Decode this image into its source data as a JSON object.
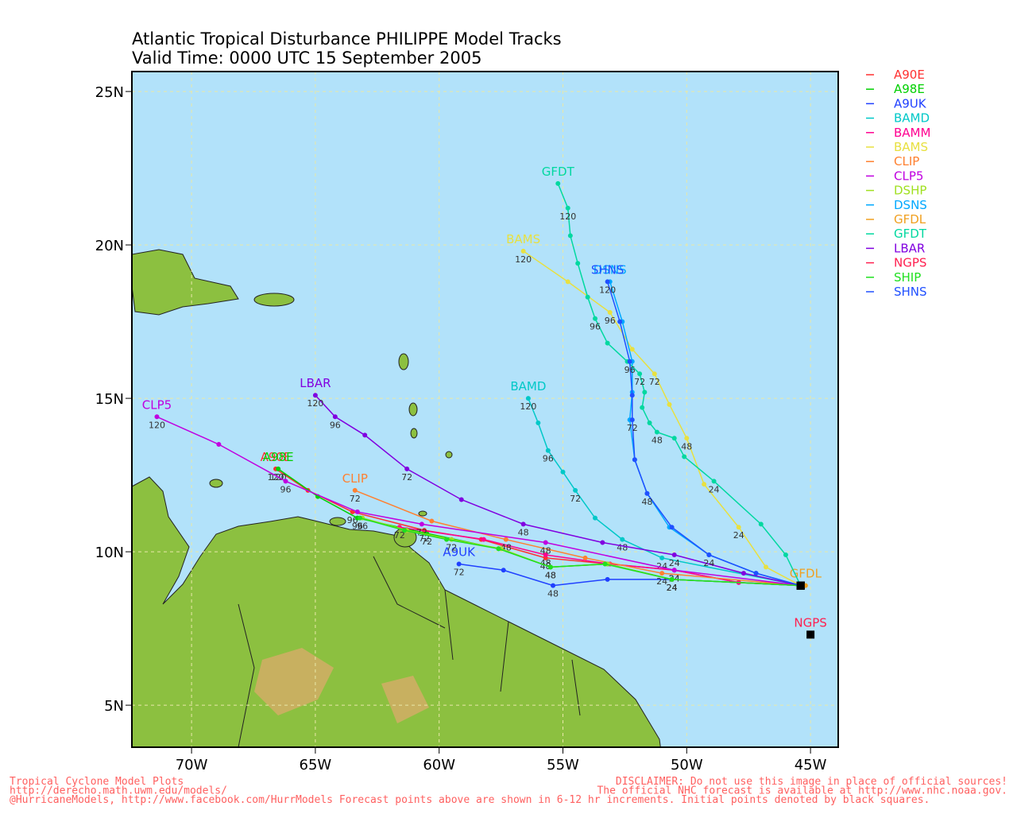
{
  "chart_data": {
    "type": "track_map",
    "title": "Atlantic Tropical Disturbance PHILIPPE Model Tracks",
    "subtitle": "Valid Time: 0000 UTC 15 September 2005",
    "xlim": [
      -72.41,
      -43.88
    ],
    "ylim": [
      3.63,
      25.65
    ],
    "xticks": [
      {
        "value": -70,
        "label": "70W"
      },
      {
        "value": -65,
        "label": "65W"
      },
      {
        "value": -60,
        "label": "60W"
      },
      {
        "value": -55,
        "label": "55W"
      },
      {
        "value": -50,
        "label": "50W"
      },
      {
        "value": -45,
        "label": "45W"
      }
    ],
    "yticks": [
      {
        "value": 5,
        "label": "5N"
      },
      {
        "value": 10,
        "label": "10N"
      },
      {
        "value": 15,
        "label": "15N"
      },
      {
        "value": 20,
        "label": "20N"
      },
      {
        "value": 25,
        "label": "25N"
      }
    ],
    "grid": true,
    "series": [
      {
        "name": "A90E",
        "color": "#ff3030",
        "end_label": true,
        "x": [
          -45.4,
          -47.9,
          -50.5,
          -53.1,
          -55.7,
          -58.3,
          -60.6,
          -63.5,
          -65.3,
          -66.6
        ],
        "y": [
          8.9,
          9.0,
          9.4,
          9.6,
          9.8,
          10.4,
          10.7,
          11.3,
          12.0,
          12.7
        ],
        "hour_labels": [
          null,
          null,
          "24",
          null,
          "48",
          null,
          "72",
          "96",
          null,
          "120"
        ]
      },
      {
        "name": "A98E",
        "color": "#00d000",
        "end_label": true,
        "x": [
          -45.4,
          -50.6,
          -53.2,
          -55.5,
          -57.6,
          -60.5,
          -63.3,
          -64.9,
          -66.5
        ],
        "y": [
          8.9,
          9.1,
          9.6,
          9.5,
          10.1,
          10.6,
          11.1,
          11.8,
          12.7
        ],
        "hour_labels": [
          null,
          "24",
          null,
          "48",
          null,
          "72",
          "96",
          null,
          "120"
        ]
      },
      {
        "name": "A9UK",
        "color": "#2040ff",
        "end_label": true,
        "x": [
          -45.4,
          -50.6,
          -53.2,
          -55.4,
          -57.4,
          -59.2
        ],
        "y": [
          8.9,
          9.1,
          9.1,
          8.9,
          9.4,
          9.6
        ],
        "hour_labels": [
          null,
          "24",
          null,
          "48",
          null,
          "72"
        ]
      },
      {
        "name": "BAMD",
        "color": "#00c8c8",
        "end_label": true,
        "x": [
          -45.4,
          -51.0,
          -52.6,
          -53.7,
          -54.5,
          -55.0,
          -55.6,
          -56.0,
          -56.4
        ],
        "y": [
          8.9,
          9.8,
          10.4,
          11.1,
          12.0,
          12.6,
          13.3,
          14.2,
          15.0
        ],
        "hour_labels": [
          null,
          "24",
          "48",
          null,
          "72",
          null,
          "96",
          null,
          "120"
        ]
      },
      {
        "name": "BAMM",
        "color": "#ff0090",
        "end_label": false,
        "x": [
          -45.4,
          -47.9,
          -50.5,
          -53.1,
          -55.7,
          -58.2,
          -61.6
        ],
        "y": [
          8.9,
          9.0,
          9.4,
          9.6,
          9.9,
          10.4,
          10.8
        ],
        "hour_labels": [
          null,
          null,
          "24",
          null,
          "48",
          null,
          "72"
        ]
      },
      {
        "name": "BAMS",
        "color": "#e8e040",
        "end_label": true,
        "x": [
          -45.4,
          -46.8,
          -47.9,
          -49.3,
          -50.0,
          -50.7,
          -51.3,
          -52.2,
          -53.1,
          -54.8,
          -56.6
        ],
        "y": [
          8.9,
          9.5,
          10.8,
          12.2,
          13.7,
          14.8,
          15.8,
          16.6,
          17.8,
          18.8,
          19.8
        ],
        "hour_labels": [
          null,
          null,
          "24",
          null,
          "48",
          null,
          "72",
          null,
          "96",
          null,
          "120"
        ]
      },
      {
        "name": "CLIP",
        "color": "#ff8030",
        "end_label": true,
        "x": [
          -45.4,
          -51.0,
          -54.1,
          -57.3,
          -60.3,
          -63.4
        ],
        "y": [
          8.9,
          9.3,
          9.8,
          10.4,
          11.0,
          12.0
        ],
        "hour_labels": [
          null,
          "24",
          null,
          "48",
          null,
          "72"
        ]
      },
      {
        "name": "CLP5",
        "color": "#c000e0",
        "end_label": true,
        "x": [
          -45.4,
          -50.5,
          -55.7,
          -60.7,
          -63.3,
          -66.2,
          -68.9,
          -71.4
        ],
        "y": [
          8.9,
          9.4,
          10.3,
          10.9,
          11.3,
          12.3,
          13.5,
          14.4
        ],
        "hour_labels": [
          null,
          "24",
          "48",
          "72",
          null,
          "96",
          null,
          "120"
        ]
      },
      {
        "name": "DSHP",
        "color": "#a0e020",
        "end_label": false,
        "x": [
          -45.4,
          -50.6,
          -53.2,
          -55.5,
          -57.5,
          -59.5,
          -61.3,
          -63.1
        ],
        "y": [
          8.9,
          9.1,
          9.6,
          9.5,
          10.1,
          10.4,
          10.7,
          11.1
        ],
        "hour_labels": [
          null,
          "24",
          null,
          "48",
          null,
          "72",
          null,
          "96"
        ]
      },
      {
        "name": "DSNS",
        "color": "#00a8ff",
        "end_label": true,
        "x": [
          -45.4,
          -47.2,
          -49.1,
          -50.7,
          -51.6,
          -52.1,
          -52.3,
          -52.2,
          -52.2,
          -52.6,
          -53.1
        ],
        "y": [
          8.9,
          9.3,
          9.9,
          10.8,
          11.9,
          13.0,
          14.3,
          15.2,
          16.2,
          17.5,
          18.8
        ],
        "hour_labels": [
          null,
          null,
          null,
          null,
          null,
          null,
          null,
          null,
          null,
          null,
          null
        ]
      },
      {
        "name": "GFDL",
        "color": "#f0a020",
        "end_label": true,
        "x": [
          -45.4,
          -45.2
        ],
        "y": [
          8.9,
          8.9
        ],
        "hour_labels": [
          null,
          null
        ]
      },
      {
        "name": "GFDT",
        "color": "#00d8a0",
        "end_label": true,
        "x": [
          -45.4,
          -46.0,
          -47.0,
          -48.9,
          -50.1,
          -50.5,
          -51.2,
          -51.5,
          -51.8,
          -51.7,
          -51.9,
          -52.4,
          -53.2,
          -53.7,
          -54.0,
          -54.4,
          -54.7,
          -54.8,
          -55.2
        ],
        "y": [
          8.9,
          9.9,
          10.9,
          12.3,
          13.1,
          13.7,
          13.9,
          14.2,
          14.7,
          15.2,
          15.8,
          16.2,
          16.8,
          17.6,
          18.3,
          19.4,
          20.3,
          21.2,
          22.0
        ],
        "hour_labels": [
          null,
          null,
          null,
          "24",
          null,
          null,
          "48",
          null,
          null,
          null,
          "72",
          null,
          null,
          "96",
          null,
          null,
          null,
          "120",
          null
        ]
      },
      {
        "name": "LBAR",
        "color": "#8000e0",
        "end_label": true,
        "x": [
          -45.4,
          -47.7,
          -50.5,
          -53.4,
          -56.6,
          -59.1,
          -61.3,
          -63.0,
          -64.2,
          -65.0
        ],
        "y": [
          8.9,
          9.3,
          9.9,
          10.3,
          10.9,
          11.7,
          12.7,
          13.8,
          14.4,
          15.1
        ],
        "hour_labels": [
          null,
          null,
          "24",
          null,
          "48",
          null,
          "72",
          null,
          "96",
          "120"
        ]
      },
      {
        "name": "NGPS",
        "color": "#ff2050",
        "end_label": true,
        "x": [
          -45.0
        ],
        "y": [
          7.3
        ],
        "hour_labels": [
          null
        ]
      },
      {
        "name": "SHIP",
        "color": "#20e020",
        "end_label": false,
        "x": [
          -45.4,
          -50.6,
          -53.3,
          -55.5,
          -57.6,
          -59.7,
          -61.4,
          -63.2
        ],
        "y": [
          8.9,
          9.1,
          9.6,
          9.5,
          10.1,
          10.4,
          10.7,
          11.1
        ],
        "hour_labels": [
          null,
          null,
          null,
          null,
          null,
          null,
          null,
          null
        ]
      },
      {
        "name": "SHNS",
        "color": "#2050ff",
        "end_label": true,
        "x": [
          -45.4,
          -47.2,
          -49.1,
          -50.6,
          -51.6,
          -52.1,
          -52.2,
          -52.2,
          -52.3,
          -52.7,
          -53.2
        ],
        "y": [
          8.9,
          9.3,
          9.9,
          10.8,
          11.9,
          13.0,
          14.3,
          15.1,
          16.2,
          17.5,
          18.8
        ],
        "hour_labels": [
          null,
          null,
          "24",
          null,
          "48",
          null,
          "72",
          null,
          "96",
          null,
          "120"
        ]
      }
    ]
  },
  "footer": {
    "left": [
      "Tropical Cyclone Model Plots",
      "http://derecho.math.uwm.edu/models/",
      "@HurricaneModels, http://www.facebook.com/HurrModels  Forecast points above are shown in 6-12 hr increments. Initial points denoted by black squares."
    ],
    "right": [
      "DISCLAIMER: Do not use this image in place of official sources!",
      "The official NHC forecast is available at http://www.nhc.noaa.gov."
    ]
  }
}
